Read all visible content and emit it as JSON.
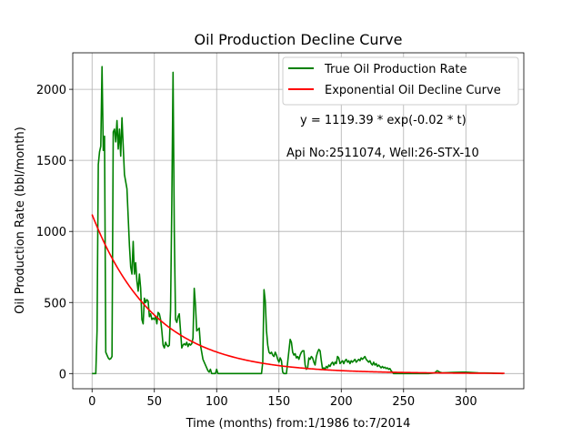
{
  "chart_data": {
    "type": "line",
    "title": "Oil Production Decline Curve",
    "xlabel": "Time (months) from:1/1986 to:7/2014",
    "ylabel": "Oil Production Rate (bbl/month)",
    "xlim": [
      -15.5,
      346.5
    ],
    "ylim": [
      -107,
      2257
    ],
    "x_ticks": [
      0,
      50,
      100,
      150,
      200,
      250,
      300
    ],
    "y_ticks": [
      0,
      500,
      1000,
      1500,
      2000
    ],
    "grid": true,
    "legend_position": "top-right",
    "annotations": [
      "y = 1119.39 * exp(-0.02 * t)",
      "Api No:2511074, Well:26-STX-10"
    ],
    "series": [
      {
        "name": "True Oil Production Rate",
        "color": "#008000",
        "points": [
          [
            0,
            0
          ],
          [
            3,
            0
          ],
          [
            4,
            300
          ],
          [
            5,
            1470
          ],
          [
            6,
            1560
          ],
          [
            7,
            1600
          ],
          [
            8,
            2160
          ],
          [
            9,
            1570
          ],
          [
            10,
            1670
          ],
          [
            11,
            150
          ],
          [
            12,
            130
          ],
          [
            13,
            110
          ],
          [
            14,
            100
          ],
          [
            15,
            105
          ],
          [
            16,
            120
          ],
          [
            17,
            1700
          ],
          [
            18,
            1720
          ],
          [
            19,
            1630
          ],
          [
            20,
            1780
          ],
          [
            21,
            1580
          ],
          [
            22,
            1720
          ],
          [
            23,
            1530
          ],
          [
            24,
            1800
          ],
          [
            25,
            1600
          ],
          [
            26,
            1400
          ],
          [
            27,
            1350
          ],
          [
            28,
            1300
          ],
          [
            29,
            1100
          ],
          [
            30,
            900
          ],
          [
            31,
            750
          ],
          [
            32,
            700
          ],
          [
            33,
            930
          ],
          [
            34,
            700
          ],
          [
            35,
            780
          ],
          [
            36,
            650
          ],
          [
            37,
            580
          ],
          [
            38,
            700
          ],
          [
            39,
            600
          ],
          [
            40,
            380
          ],
          [
            41,
            350
          ],
          [
            42,
            530
          ],
          [
            43,
            500
          ],
          [
            44,
            520
          ],
          [
            45,
            510
          ],
          [
            46,
            400
          ],
          [
            47,
            420
          ],
          [
            48,
            380
          ],
          [
            49,
            390
          ],
          [
            50,
            380
          ],
          [
            51,
            400
          ],
          [
            52,
            350
          ],
          [
            53,
            430
          ],
          [
            54,
            420
          ],
          [
            55,
            380
          ],
          [
            56,
            300
          ],
          [
            57,
            200
          ],
          [
            58,
            180
          ],
          [
            59,
            220
          ],
          [
            60,
            200
          ],
          [
            61,
            190
          ],
          [
            62,
            200
          ],
          [
            63,
            450
          ],
          [
            64,
            1200
          ],
          [
            65,
            2120
          ],
          [
            66,
            1000
          ],
          [
            67,
            380
          ],
          [
            68,
            360
          ],
          [
            69,
            400
          ],
          [
            70,
            420
          ],
          [
            71,
            300
          ],
          [
            72,
            180
          ],
          [
            73,
            200
          ],
          [
            74,
            210
          ],
          [
            75,
            200
          ],
          [
            76,
            220
          ],
          [
            77,
            190
          ],
          [
            78,
            210
          ],
          [
            79,
            200
          ],
          [
            80,
            210
          ],
          [
            81,
            250
          ],
          [
            82,
            600
          ],
          [
            83,
            480
          ],
          [
            84,
            300
          ],
          [
            85,
            310
          ],
          [
            86,
            320
          ],
          [
            87,
            200
          ],
          [
            88,
            150
          ],
          [
            89,
            100
          ],
          [
            90,
            80
          ],
          [
            91,
            60
          ],
          [
            92,
            40
          ],
          [
            93,
            20
          ],
          [
            94,
            10
          ],
          [
            95,
            30
          ],
          [
            96,
            0
          ],
          [
            97,
            0
          ],
          [
            98,
            0
          ],
          [
            99,
            0
          ],
          [
            100,
            30
          ],
          [
            101,
            0
          ],
          [
            110,
            0
          ],
          [
            120,
            0
          ],
          [
            130,
            0
          ],
          [
            136,
            0
          ],
          [
            137,
            80
          ],
          [
            138,
            590
          ],
          [
            139,
            510
          ],
          [
            140,
            300
          ],
          [
            141,
            200
          ],
          [
            142,
            150
          ],
          [
            143,
            140
          ],
          [
            144,
            150
          ],
          [
            145,
            130
          ],
          [
            146,
            120
          ],
          [
            147,
            150
          ],
          [
            148,
            130
          ],
          [
            149,
            100
          ],
          [
            150,
            80
          ],
          [
            151,
            110
          ],
          [
            152,
            90
          ],
          [
            153,
            10
          ],
          [
            154,
            0
          ],
          [
            155,
            0
          ],
          [
            156,
            0
          ],
          [
            157,
            80
          ],
          [
            158,
            160
          ],
          [
            159,
            240
          ],
          [
            160,
            220
          ],
          [
            161,
            150
          ],
          [
            162,
            130
          ],
          [
            163,
            140
          ],
          [
            164,
            110
          ],
          [
            165,
            120
          ],
          [
            166,
            100
          ],
          [
            167,
            130
          ],
          [
            168,
            150
          ],
          [
            169,
            160
          ],
          [
            170,
            160
          ],
          [
            171,
            60
          ],
          [
            172,
            30
          ],
          [
            173,
            40
          ],
          [
            174,
            110
          ],
          [
            175,
            100
          ],
          [
            176,
            120
          ],
          [
            177,
            110
          ],
          [
            178,
            80
          ],
          [
            179,
            60
          ],
          [
            180,
            120
          ],
          [
            181,
            150
          ],
          [
            182,
            170
          ],
          [
            183,
            160
          ],
          [
            184,
            90
          ],
          [
            185,
            30
          ],
          [
            186,
            40
          ],
          [
            187,
            30
          ],
          [
            188,
            50
          ],
          [
            189,
            40
          ],
          [
            190,
            60
          ],
          [
            191,
            50
          ],
          [
            192,
            70
          ],
          [
            193,
            80
          ],
          [
            194,
            60
          ],
          [
            195,
            80
          ],
          [
            196,
            70
          ],
          [
            197,
            120
          ],
          [
            198,
            110
          ],
          [
            199,
            70
          ],
          [
            200,
            80
          ],
          [
            201,
            90
          ],
          [
            202,
            70
          ],
          [
            203,
            90
          ],
          [
            204,
            100
          ],
          [
            205,
            80
          ],
          [
            206,
            90
          ],
          [
            207,
            70
          ],
          [
            208,
            90
          ],
          [
            209,
            80
          ],
          [
            210,
            90
          ],
          [
            211,
            100
          ],
          [
            212,
            80
          ],
          [
            213,
            90
          ],
          [
            214,
            100
          ],
          [
            215,
            90
          ],
          [
            216,
            110
          ],
          [
            217,
            100
          ],
          [
            218,
            110
          ],
          [
            219,
            120
          ],
          [
            220,
            100
          ],
          [
            221,
            90
          ],
          [
            222,
            80
          ],
          [
            223,
            90
          ],
          [
            224,
            70
          ],
          [
            225,
            60
          ],
          [
            226,
            80
          ],
          [
            227,
            60
          ],
          [
            228,
            70
          ],
          [
            229,
            50
          ],
          [
            230,
            60
          ],
          [
            231,
            50
          ],
          [
            232,
            40
          ],
          [
            233,
            50
          ],
          [
            234,
            40
          ],
          [
            235,
            45
          ],
          [
            236,
            35
          ],
          [
            237,
            40
          ],
          [
            238,
            30
          ],
          [
            239,
            35
          ],
          [
            240,
            20
          ],
          [
            241,
            10
          ],
          [
            242,
            0
          ],
          [
            250,
            0
          ],
          [
            260,
            0
          ],
          [
            270,
            0
          ],
          [
            275,
            5
          ],
          [
            277,
            20
          ],
          [
            279,
            10
          ],
          [
            281,
            5
          ],
          [
            290,
            8
          ],
          [
            300,
            10
          ],
          [
            310,
            5
          ],
          [
            320,
            3
          ],
          [
            330,
            0
          ]
        ]
      },
      {
        "name": "Exponential Oil Decline Curve",
        "color": "#ff0000",
        "function": {
          "a": 1119.39,
          "b": -0.02,
          "x_start": 0,
          "x_end": 331,
          "x_step": 1
        }
      }
    ]
  }
}
